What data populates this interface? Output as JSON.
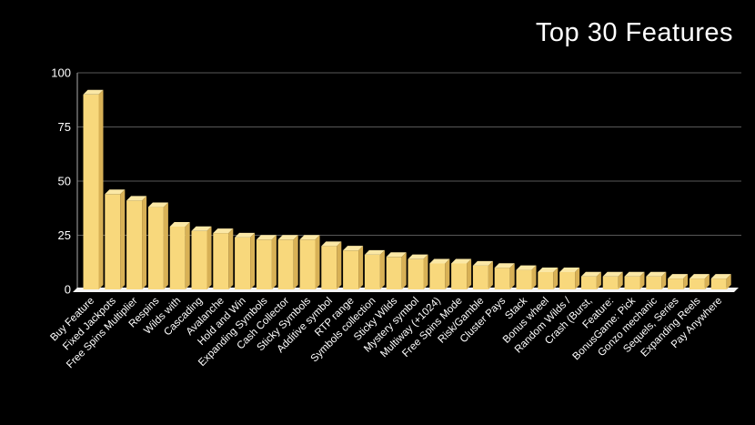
{
  "title": "Top 30 Features",
  "chart_data": {
    "type": "bar",
    "title": "Top 30 Features",
    "categories": [
      "Buy Feature",
      "Fixed Jackpots",
      "Free Spins Multiplier",
      "Respins",
      "Wilds with",
      "Cascading",
      "Avalanche",
      "Hold and Win",
      "Expanding Symbols",
      "Cash Collector",
      "Sticky Symbols",
      "Additive symbol",
      "RTP range",
      "Symbols collection",
      "Sticky Wilds",
      "Mystery symbol",
      "Multiway (+1024)",
      "Free Spins Mode",
      "Risk/Gamble",
      "Cluster Pays",
      "Stack",
      "Bonus wheel",
      "Random Wilds /",
      "Crash (Burst,",
      "Feature:",
      "BonusGame: Pick",
      "Gonzo mechanic",
      "Sequels, Series",
      "Expanding Reels",
      "Pay Anywhere"
    ],
    "values": [
      90,
      44,
      41,
      38,
      29,
      27,
      26,
      24,
      23,
      23,
      23,
      20,
      18,
      16,
      15,
      14,
      12,
      12,
      11,
      10,
      9,
      8,
      8,
      6,
      6,
      6,
      6,
      5,
      5,
      5
    ],
    "xlabel": "",
    "ylabel": "",
    "ylim": [
      0,
      100
    ],
    "yticks": [
      0,
      25,
      50,
      75,
      100
    ],
    "grid": true,
    "legend": false,
    "colors": {
      "background": "#000000",
      "text": "#ffffff",
      "bar_front": "#F8D87C",
      "bar_top": "#FBE8A6",
      "bar_side": "#D8B156",
      "floor": "#F5F5F5",
      "gridline": "#585858",
      "axis": "#909090"
    }
  }
}
